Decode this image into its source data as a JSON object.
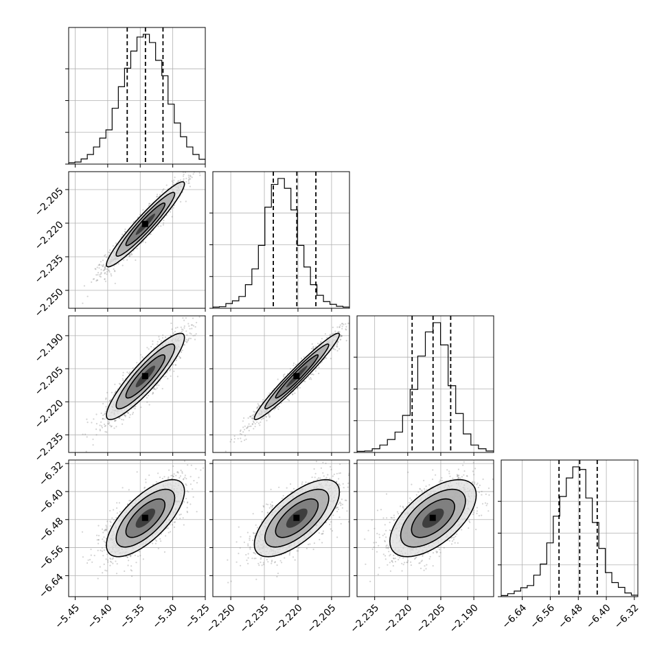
{
  "chart_data": {
    "type": "corner",
    "title": "",
    "grid": true,
    "parameters": [
      {
        "name": "",
        "range": [
          -5.46,
          -5.25
        ],
        "quantiles": [
          -5.37,
          -5.342,
          -5.315
        ],
        "ticks": [
          -5.45,
          -5.4,
          -5.35,
          -5.3,
          -5.25
        ],
        "tick_labels": [
          "−5.45",
          "−5.40",
          "−5.35",
          "−5.30",
          "−5.25"
        ],
        "hist": [
          0.4,
          0.6,
          1.5,
          2.8,
          5.0,
          7.6,
          10.0,
          16.3,
          22.6,
          28.0,
          33.0,
          37.1,
          37.9,
          35.5,
          30.3,
          25.8,
          17.5,
          12.0,
          8.0,
          5.0,
          2.8,
          1.4
        ]
      },
      {
        "name": "",
        "range": [
          -2.258,
          -2.197
        ],
        "quantiles": [
          -2.231,
          -2.2205,
          -2.212
        ],
        "ticks": [
          -2.25,
          -2.235,
          -2.22,
          -2.205
        ],
        "tick_labels": [
          "−2.250",
          "−2.235",
          "−2.220",
          "−2.205"
        ],
        "hist": [
          0.3,
          0.4,
          1.2,
          1.9,
          3.0,
          6.0,
          10.0,
          16.0,
          25.7,
          31.5,
          33.0,
          30.5,
          25.0,
          16.0,
          10.5,
          6.0,
          3.3,
          1.7,
          1.0,
          0.5,
          0.3
        ]
      },
      {
        "name": "",
        "range": [
          -2.243,
          -2.181
        ],
        "quantiles": [
          -2.218,
          -2.2085,
          -2.2005
        ],
        "ticks": [
          -2.235,
          -2.22,
          -2.205,
          -2.19
        ],
        "tick_labels": [
          "−2.235",
          "−2.220",
          "−2.205",
          "−2.190"
        ],
        "hist": [
          0.3,
          0.4,
          1.0,
          2.0,
          3.5,
          5.5,
          10.0,
          17.0,
          26.0,
          32.5,
          35.0,
          29.0,
          18.0,
          10.5,
          5.0,
          2.0,
          1.0,
          0.4
        ]
      },
      {
        "name": "",
        "range": [
          -6.7,
          -6.31
        ],
        "quantiles": [
          -6.535,
          -6.476,
          -6.426
        ],
        "ticks": [
          -6.64,
          -6.56,
          -6.48,
          -6.4,
          -6.32
        ],
        "tick_labels": [
          "−6.64",
          "−6.56",
          "−6.48",
          "−6.40",
          "−6.32"
        ],
        "hist": [
          0.3,
          0.8,
          1.5,
          2.4,
          3.0,
          5.8,
          8.8,
          14.5,
          21.7,
          27.0,
          32.0,
          35.0,
          34.3,
          26.6,
          20.0,
          13.0,
          6.5,
          3.8,
          2.5,
          1.0,
          0.4
        ]
      }
    ],
    "pairs": [
      {
        "row": 1,
        "col": 0,
        "mean": [
          -5.342,
          -2.2205
        ],
        "sd": [
          0.03,
          0.0095
        ],
        "rho": 0.95
      },
      {
        "row": 2,
        "col": 0,
        "mean": [
          -5.342,
          -2.2085
        ],
        "sd": [
          0.03,
          0.0098
        ],
        "rho": 0.9
      },
      {
        "row": 2,
        "col": 1,
        "mean": [
          -2.2205,
          -2.2085
        ],
        "sd": [
          0.0095,
          0.0098
        ],
        "rho": 0.97
      },
      {
        "row": 3,
        "col": 0,
        "mean": [
          -5.342,
          -6.476
        ],
        "sd": [
          0.03,
          0.055
        ],
        "rho": 0.7
      },
      {
        "row": 3,
        "col": 1,
        "mean": [
          -2.2205,
          -6.476
        ],
        "sd": [
          0.0095,
          0.055
        ],
        "rho": 0.68
      },
      {
        "row": 3,
        "col": 2,
        "mean": [
          -2.2085,
          -6.476
        ],
        "sd": [
          0.0098,
          0.055
        ],
        "rho": 0.6
      }
    ],
    "contour_levels_sigma": [
      0.5,
      1.0,
      1.5,
      2.0
    ],
    "colors": {
      "line": "#000000",
      "grid": "#b0b0b0",
      "points": "#808080",
      "fill_levels": [
        "#333333",
        "#777777",
        "#aaaaaa",
        "#dddddd"
      ]
    }
  }
}
